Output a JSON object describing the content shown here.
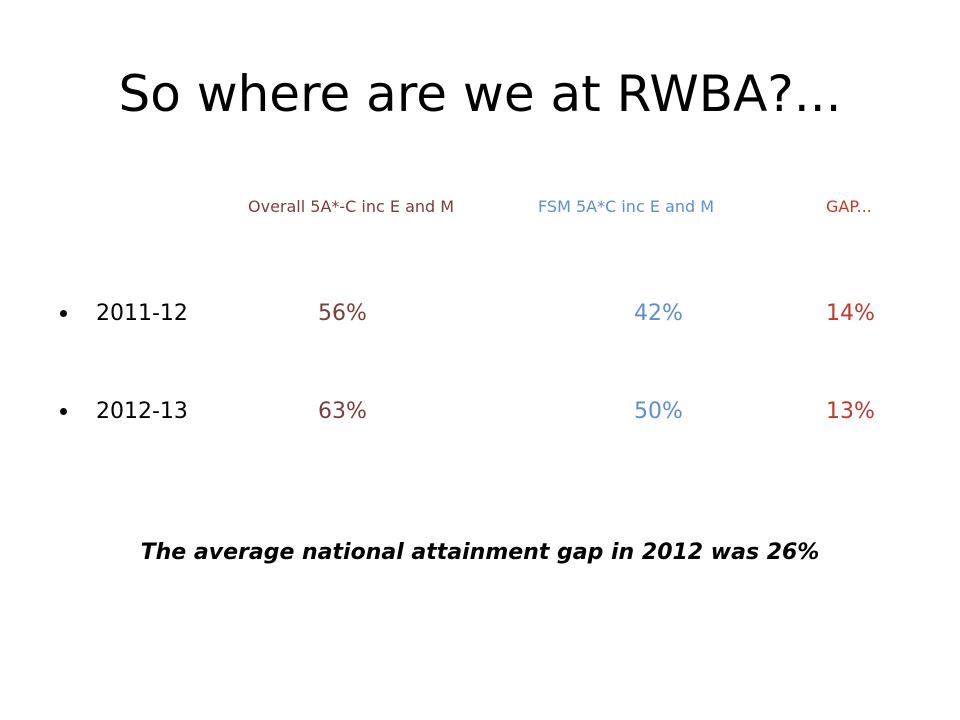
{
  "slide": {
    "title": "So where are we at RWBA?...",
    "headers": {
      "overall": "Overall 5A*-C inc E and M",
      "fsm": "FSM 5A*C inc E and M",
      "gap": "GAP..."
    },
    "rows": [
      {
        "year": "2011-12",
        "overall": "56%",
        "fsm": "42%",
        "gap": "14%"
      },
      {
        "year": "2012-13",
        "overall": "63%",
        "fsm": "50%",
        "gap": "13%"
      }
    ],
    "note": "The average national attainment gap in 2012 was 26%"
  },
  "colors": {
    "overall": "#7a3e3a",
    "fsm": "#5b8fd1",
    "gap": "#c0392b",
    "text": "#000000",
    "background": "#ffffff"
  }
}
